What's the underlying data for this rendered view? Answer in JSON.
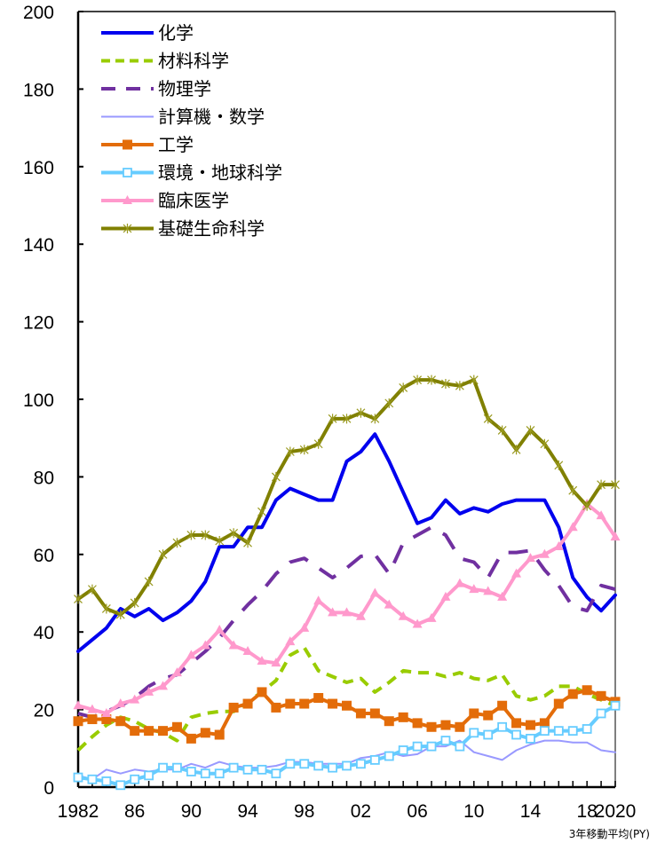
{
  "chart_data": {
    "type": "line",
    "title": "",
    "xlabel": "",
    "ylabel": "",
    "note": "3年移動平均(PY)",
    "ylim": [
      0,
      200
    ],
    "xlim": [
      1982,
      2020
    ],
    "y_ticks": [
      0,
      20,
      40,
      60,
      80,
      100,
      120,
      140,
      160,
      180,
      200
    ],
    "x_tick_labels": [
      {
        "year": 1982,
        "label": "1982"
      },
      {
        "year": 1986,
        "label": "86"
      },
      {
        "year": 1990,
        "label": "90"
      },
      {
        "year": 1994,
        "label": "94"
      },
      {
        "year": 1998,
        "label": "98"
      },
      {
        "year": 2002,
        "label": "02"
      },
      {
        "year": 2006,
        "label": "06"
      },
      {
        "year": 2010,
        "label": "10"
      },
      {
        "year": 2014,
        "label": "14"
      },
      {
        "year": 2018,
        "label": "18"
      },
      {
        "year": 2020,
        "label": "2020"
      }
    ],
    "grid": false,
    "legend_position": "upper-left-inside",
    "x": [
      1982,
      1983,
      1984,
      1985,
      1986,
      1987,
      1988,
      1989,
      1990,
      1991,
      1992,
      1993,
      1994,
      1995,
      1996,
      1997,
      1998,
      1999,
      2000,
      2001,
      2002,
      2003,
      2004,
      2005,
      2006,
      2007,
      2008,
      2009,
      2010,
      2011,
      2012,
      2013,
      2014,
      2015,
      2016,
      2017,
      2018,
      2019,
      2020
    ],
    "series": [
      {
        "name": "化学",
        "color": "#0000ee",
        "style": "solid",
        "marker": "none",
        "width": 4,
        "values": [
          35,
          38,
          41,
          46,
          44,
          46,
          43,
          45,
          48,
          53,
          62,
          62,
          67,
          67,
          74,
          77,
          75.5,
          74,
          74,
          84,
          86.5,
          91,
          84,
          76,
          68,
          69.5,
          74,
          70.5,
          72,
          71,
          73,
          74,
          74,
          74,
          67,
          54,
          49,
          45.5,
          49.5
        ]
      },
      {
        "name": "材料科学",
        "color": "#99cc00",
        "style": "dashed",
        "marker": "none",
        "width": 4,
        "values": [
          9.5,
          13,
          16,
          18,
          17,
          15,
          14,
          12,
          18,
          19,
          19.5,
          19.5,
          22,
          24.5,
          27.5,
          34,
          36,
          30,
          28.5,
          27,
          28,
          24.5,
          27,
          30,
          29.5,
          29.5,
          28.5,
          29.5,
          28,
          27.5,
          29,
          23.5,
          22.5,
          23.5,
          26,
          26,
          24,
          22.5,
          21
        ]
      },
      {
        "name": "物理学",
        "color": "#7030a0",
        "style": "longdash",
        "marker": "none",
        "width": 4,
        "values": [
          19,
          18,
          19.5,
          21,
          23,
          26,
          28,
          29,
          32,
          35,
          38.5,
          43,
          47,
          50.5,
          55,
          58,
          59,
          56.5,
          54,
          56.5,
          59.5,
          60,
          55,
          63,
          65,
          67,
          65,
          59,
          58,
          54,
          60.5,
          60.5,
          61,
          56,
          52,
          46.5,
          45.5,
          52,
          51
        ]
      },
      {
        "name": "計算機・数学",
        "color": "#9999ff",
        "style": "solid",
        "marker": "none",
        "width": 2,
        "values": [
          3,
          2,
          4.5,
          3.5,
          4.5,
          4,
          4.5,
          4.5,
          6,
          5,
          6.5,
          5.5,
          5,
          5,
          5.5,
          6.5,
          6.5,
          6,
          6,
          6,
          7.5,
          8,
          9,
          8,
          8.5,
          10.5,
          10.5,
          12,
          9,
          8,
          7,
          9.5,
          11,
          12,
          12,
          11.5,
          11.5,
          9.5,
          9
        ]
      },
      {
        "name": "工学",
        "color": "#e36c09",
        "style": "solid",
        "marker": "square-filled",
        "width": 4,
        "values": [
          17,
          17.5,
          17.5,
          17,
          14.5,
          14.5,
          14.5,
          15.5,
          12.5,
          14,
          13.5,
          20.5,
          21.5,
          24.5,
          20.5,
          21.5,
          21.5,
          23,
          21.5,
          21,
          19,
          19,
          17,
          18,
          16.5,
          15.5,
          16,
          15.5,
          19,
          18.5,
          21,
          16.5,
          16,
          16.5,
          21.5,
          24,
          25,
          23.5,
          22
        ]
      },
      {
        "name": "環境・地球科学",
        "color": "#66ccff",
        "style": "solid",
        "marker": "square-open",
        "width": 4,
        "values": [
          2.5,
          2,
          1.5,
          0.5,
          2,
          3,
          5,
          5,
          4,
          3.5,
          3.5,
          5,
          4.5,
          4.5,
          3.5,
          6,
          6,
          5.5,
          5,
          5.5,
          6,
          7,
          8,
          9.5,
          10.5,
          10.5,
          12,
          10.5,
          14,
          13.5,
          15.5,
          13.5,
          12.5,
          14.5,
          14.5,
          14.5,
          15,
          19,
          21
        ]
      },
      {
        "name": "臨床医学",
        "color": "#ff99cc",
        "style": "solid",
        "marker": "triangle",
        "width": 4,
        "values": [
          21,
          20,
          19,
          21.5,
          22.5,
          24.5,
          26,
          29.5,
          34,
          36.5,
          40.5,
          36.5,
          35,
          32.5,
          32,
          37.5,
          41,
          48,
          45,
          45,
          44,
          50,
          47,
          44,
          42,
          43.5,
          49,
          52.5,
          51,
          50.5,
          49,
          55,
          59,
          60,
          62,
          67,
          73,
          70,
          64.5
        ]
      },
      {
        "name": "基礎生命科学",
        "color": "#808000",
        "style": "solid",
        "marker": "star",
        "width": 4,
        "values": [
          48.5,
          51,
          46,
          44.5,
          47.5,
          53,
          60,
          63,
          65,
          65,
          63.5,
          65.5,
          63,
          71,
          80,
          86.5,
          87,
          88.5,
          95,
          95,
          96.5,
          95,
          99,
          103,
          105,
          105,
          104,
          103.5,
          105,
          95,
          92,
          87,
          92,
          88.5,
          83,
          76.5,
          72.5,
          78,
          78
        ]
      }
    ]
  }
}
